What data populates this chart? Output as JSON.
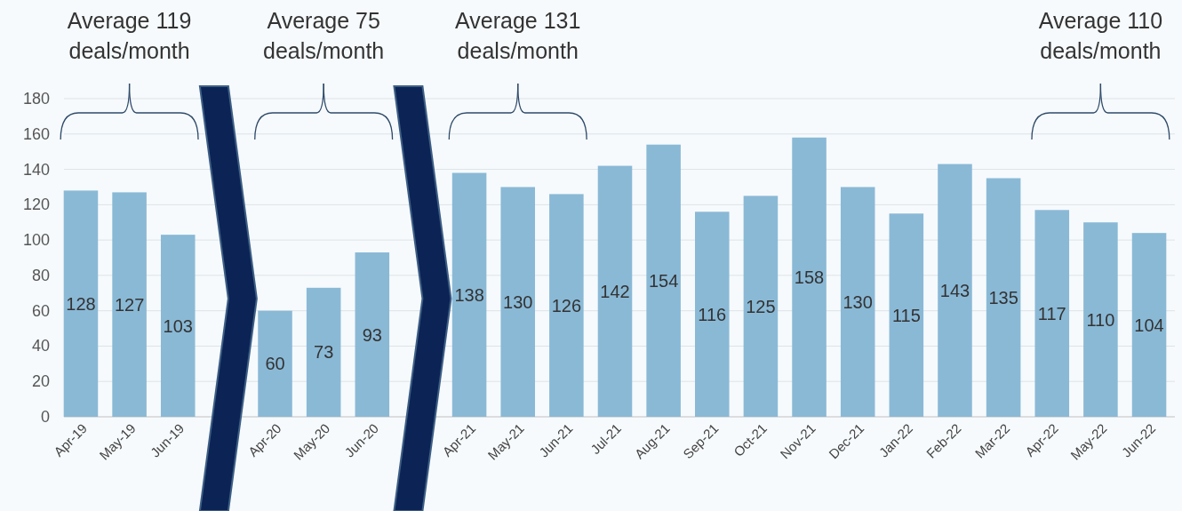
{
  "chart_data": {
    "type": "bar",
    "categories": [
      "Apr-19",
      "May-19",
      "Jun-19",
      null,
      "Apr-20",
      "May-20",
      "Jun-20",
      null,
      "Apr-21",
      "May-21",
      "Jun-21",
      "Jul-21",
      "Aug-21",
      "Sep-21",
      "Oct-21",
      "Nov-21",
      "Dec-21",
      "Jan-22",
      "Feb-22",
      "Mar-22",
      "Apr-22",
      "May-22",
      "Jun-22"
    ],
    "values": [
      128,
      127,
      103,
      null,
      60,
      73,
      93,
      null,
      138,
      130,
      126,
      142,
      154,
      116,
      125,
      158,
      130,
      115,
      143,
      135,
      117,
      110,
      104
    ],
    "color": "#8ab9d6",
    "ylim": [
      0,
      180
    ],
    "yticks": [
      0,
      20,
      40,
      60,
      80,
      100,
      120,
      140,
      160,
      180
    ],
    "grid": "y",
    "data_labels": true,
    "annotations": [
      "Average 119\ndeals/month",
      "Average 75\ndeals/month",
      "Average 131\ndeals/month",
      "Average 110\ndeals/month"
    ]
  }
}
